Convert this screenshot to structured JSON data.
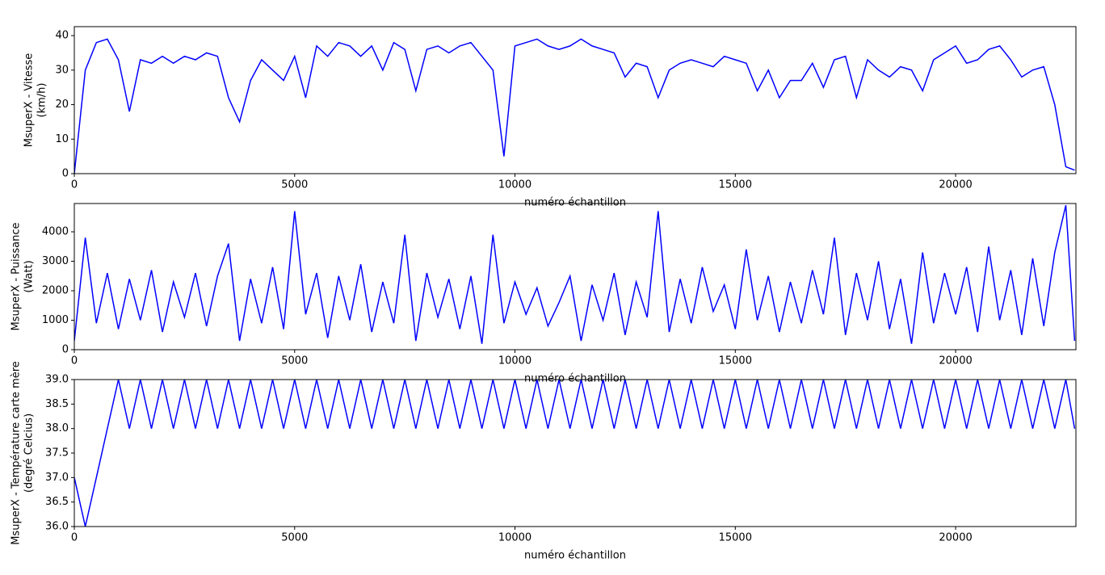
{
  "chart_data": [
    {
      "type": "line",
      "color": "#0000ff",
      "ylabel": [
        "MsuperX - Vitesse",
        "(km/h)"
      ],
      "xlabel": "numéro échantillon",
      "xlim": [
        0,
        22730
      ],
      "xticks": [
        0,
        5000,
        10000,
        15000,
        20000
      ],
      "ylim": [
        0,
        42.6
      ],
      "yticks": [
        0,
        10,
        20,
        30,
        40
      ],
      "x": [
        0,
        250,
        500,
        750,
        1000,
        1250,
        1500,
        1750,
        2000,
        2250,
        2500,
        2750,
        3000,
        3250,
        3500,
        3750,
        4000,
        4250,
        4500,
        4750,
        5000,
        5250,
        5500,
        5750,
        6000,
        6250,
        6500,
        6750,
        7000,
        7250,
        7500,
        7750,
        8000,
        8250,
        8500,
        8750,
        9000,
        9250,
        9500,
        9750,
        10000,
        10250,
        10500,
        10750,
        11000,
        11250,
        11500,
        11750,
        12000,
        12250,
        12500,
        12750,
        13000,
        13250,
        13500,
        13750,
        14000,
        14250,
        14500,
        14750,
        15000,
        15250,
        15500,
        15750,
        16000,
        16250,
        16500,
        16750,
        17000,
        17250,
        17500,
        17750,
        18000,
        18250,
        18500,
        18750,
        19000,
        19250,
        19500,
        19750,
        20000,
        20250,
        20500,
        20750,
        21000,
        21250,
        21500,
        21750,
        22000,
        22250,
        22500,
        22700
      ],
      "values": [
        0,
        30,
        38,
        39,
        33,
        18,
        33,
        32,
        34,
        32,
        34,
        33,
        35,
        34,
        22,
        15,
        27,
        33,
        30,
        27,
        34,
        22,
        37,
        34,
        38,
        37,
        34,
        37,
        30,
        38,
        36,
        24,
        36,
        37,
        35,
        37,
        38,
        34,
        30,
        5,
        37,
        38,
        39,
        37,
        36,
        37,
        39,
        37,
        36,
        35,
        28,
        32,
        31,
        22,
        30,
        32,
        33,
        32,
        31,
        34,
        33,
        32,
        24,
        30,
        22,
        27,
        27,
        32,
        25,
        33,
        34,
        22,
        33,
        30,
        28,
        31,
        30,
        24,
        33,
        35,
        37,
        32,
        33,
        36,
        37,
        33,
        28,
        30,
        31,
        20,
        2,
        1
      ]
    },
    {
      "type": "line",
      "color": "#0000ff",
      "ylabel": [
        "MsuperX - Puissance",
        "(Watt)"
      ],
      "xlabel": "numéro échantillon",
      "xlim": [
        0,
        22730
      ],
      "xticks": [
        0,
        5000,
        10000,
        15000,
        20000
      ],
      "ylim": [
        0,
        4960
      ],
      "yticks": [
        0,
        1000,
        2000,
        3000,
        4000
      ],
      "x": [
        0,
        250,
        500,
        750,
        1000,
        1250,
        1500,
        1750,
        2000,
        2250,
        2500,
        2750,
        3000,
        3250,
        3500,
        3750,
        4000,
        4250,
        4500,
        4750,
        5000,
        5250,
        5500,
        5750,
        6000,
        6250,
        6500,
        6750,
        7000,
        7250,
        7500,
        7750,
        8000,
        8250,
        8500,
        8750,
        9000,
        9250,
        9500,
        9750,
        10000,
        10250,
        10500,
        10750,
        11000,
        11250,
        11500,
        11750,
        12000,
        12250,
        12500,
        12750,
        13000,
        13250,
        13500,
        13750,
        14000,
        14250,
        14500,
        14750,
        15000,
        15250,
        15500,
        15750,
        16000,
        16250,
        16500,
        16750,
        17000,
        17250,
        17500,
        17750,
        18000,
        18250,
        18500,
        18750,
        19000,
        19250,
        19500,
        19750,
        20000,
        20250,
        20500,
        20750,
        21000,
        21250,
        21500,
        21750,
        22000,
        22250,
        22500,
        22700
      ],
      "values": [
        300,
        3800,
        900,
        2600,
        700,
        2400,
        1000,
        2700,
        600,
        2300,
        1100,
        2600,
        800,
        2500,
        3600,
        300,
        2400,
        900,
        2800,
        700,
        4700,
        1200,
        2600,
        400,
        2500,
        1000,
        2900,
        600,
        2300,
        900,
        3900,
        300,
        2600,
        1100,
        2400,
        700,
        2500,
        200,
        3900,
        900,
        2300,
        1200,
        2100,
        800,
        1600,
        2500,
        300,
        2200,
        1000,
        2600,
        500,
        2300,
        1100,
        4700,
        600,
        2400,
        900,
        2800,
        1300,
        2200,
        700,
        3400,
        1000,
        2500,
        600,
        2300,
        900,
        2700,
        1200,
        3800,
        500,
        2600,
        1000,
        3000,
        700,
        2400,
        200,
        3300,
        900,
        2600,
        1200,
        2800,
        600,
        3500,
        1000,
        2700,
        500,
        3100,
        800,
        3300,
        4900,
        300
      ]
    },
    {
      "type": "line",
      "color": "#0000ff",
      "ylabel": [
        "MsuperX - Température carte mère",
        "(degré Celcius)"
      ],
      "xlabel": "numéro échantillon",
      "xlim": [
        0,
        22730
      ],
      "xticks": [
        0,
        5000,
        10000,
        15000,
        20000
      ],
      "ylim": [
        36,
        39
      ],
      "yticks": [
        {
          "value": 36,
          "label": "36.0"
        },
        {
          "value": 36.5,
          "label": "36.5"
        },
        {
          "value": 37,
          "label": "37.0"
        },
        {
          "value": 37.5,
          "label": "37.5"
        },
        {
          "value": 38,
          "label": "38.0"
        },
        {
          "value": 38.5,
          "label": "38.5"
        },
        {
          "value": 39,
          "label": "39.0"
        }
      ],
      "x": [
        0,
        250,
        500,
        750,
        1000,
        1250,
        1500,
        1750,
        2000,
        2250,
        2500,
        2750,
        3000,
        3250,
        3500,
        3750,
        4000,
        4250,
        4500,
        4750,
        5000,
        5250,
        5500,
        5750,
        6000,
        6250,
        6500,
        6750,
        7000,
        7250,
        7500,
        7750,
        8000,
        8250,
        8500,
        8750,
        9000,
        9250,
        9500,
        9750,
        10000,
        10250,
        10500,
        10750,
        11000,
        11250,
        11500,
        11750,
        12000,
        12250,
        12500,
        12750,
        13000,
        13250,
        13500,
        13750,
        14000,
        14250,
        14500,
        14750,
        15000,
        15250,
        15500,
        15750,
        16000,
        16250,
        16500,
        16750,
        17000,
        17250,
        17500,
        17750,
        18000,
        18250,
        18500,
        18750,
        19000,
        19250,
        19500,
        19750,
        20000,
        20250,
        20500,
        20750,
        21000,
        21250,
        21500,
        21750,
        22000,
        22250,
        22500,
        22700
      ],
      "values": [
        37,
        36,
        37,
        38,
        39,
        38,
        39,
        38,
        39,
        38,
        39,
        38,
        39,
        38,
        39,
        38,
        39,
        38,
        39,
        38,
        39,
        38,
        39,
        38,
        39,
        38,
        39,
        38,
        39,
        38,
        39,
        38,
        39,
        38,
        39,
        38,
        39,
        38,
        39,
        38,
        39,
        38,
        39,
        38,
        39,
        38,
        39,
        38,
        39,
        38,
        39,
        38,
        39,
        38,
        39,
        38,
        39,
        38,
        39,
        38,
        39,
        38,
        39,
        38,
        39,
        38,
        39,
        38,
        39,
        38,
        39,
        38,
        39,
        38,
        39,
        38,
        39,
        38,
        39,
        38,
        39,
        38,
        39,
        38,
        39,
        38,
        39,
        38,
        39,
        38,
        39,
        38
      ]
    }
  ]
}
